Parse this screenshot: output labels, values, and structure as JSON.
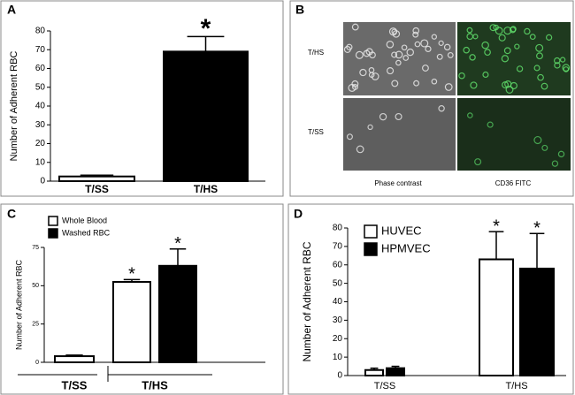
{
  "chart_data": [
    {
      "type": "bar",
      "panel": "A",
      "ylabel": "Number of Adherent RBC",
      "categories": [
        "T/SS",
        "T/HS"
      ],
      "series": [
        {
          "color": [
            "#ffffff",
            "#000000"
          ],
          "values": [
            2.5,
            69
          ],
          "errors": [
            0.7,
            8
          ]
        }
      ],
      "ylim": [
        0,
        80
      ],
      "yticks": [
        0,
        10,
        20,
        30,
        40,
        50,
        60,
        70,
        80
      ],
      "grid": false,
      "annotations": [
        "*"
      ]
    },
    {
      "type": "bar",
      "panel": "C",
      "ylabel": "Number of Adherent RBC",
      "categories": [
        "T/SS",
        "T/HS"
      ],
      "series": [
        {
          "name": "Whole Blood",
          "color": "#ffffff",
          "values": [
            4,
            52.5
          ],
          "errors": [
            0.7,
            1.5
          ]
        },
        {
          "name": "Washed RBC",
          "color": "#000000",
          "values": [
            null,
            63
          ],
          "errors": [
            null,
            11
          ]
        }
      ],
      "ylim": [
        0,
        75
      ],
      "yticks": [
        0,
        25,
        50,
        75
      ],
      "grid": false,
      "legend": "upper-left",
      "annotations": [
        "*",
        "*"
      ]
    },
    {
      "type": "bar",
      "panel": "D",
      "ylabel": "Number of Adherent RBC",
      "categories": [
        "T/SS",
        "T/HS"
      ],
      "series": [
        {
          "name": "HUVEC",
          "color": "#ffffff",
          "values": [
            3,
            63
          ],
          "errors": [
            1,
            15
          ]
        },
        {
          "name": "HPMVEC",
          "color": "#000000",
          "values": [
            4,
            58
          ],
          "errors": [
            1,
            19
          ]
        }
      ],
      "ylim": [
        0,
        80
      ],
      "yticks": [
        0,
        10,
        20,
        30,
        40,
        50,
        60,
        70,
        80
      ],
      "grid": false,
      "legend": "upper-left",
      "annotations": [
        "*",
        "*"
      ]
    }
  ],
  "panel_b": {
    "panel": "B",
    "row_labels": [
      "T/HS",
      "T/SS"
    ],
    "column_labels": [
      "Phase contrast",
      "CD36 FITC"
    ]
  }
}
